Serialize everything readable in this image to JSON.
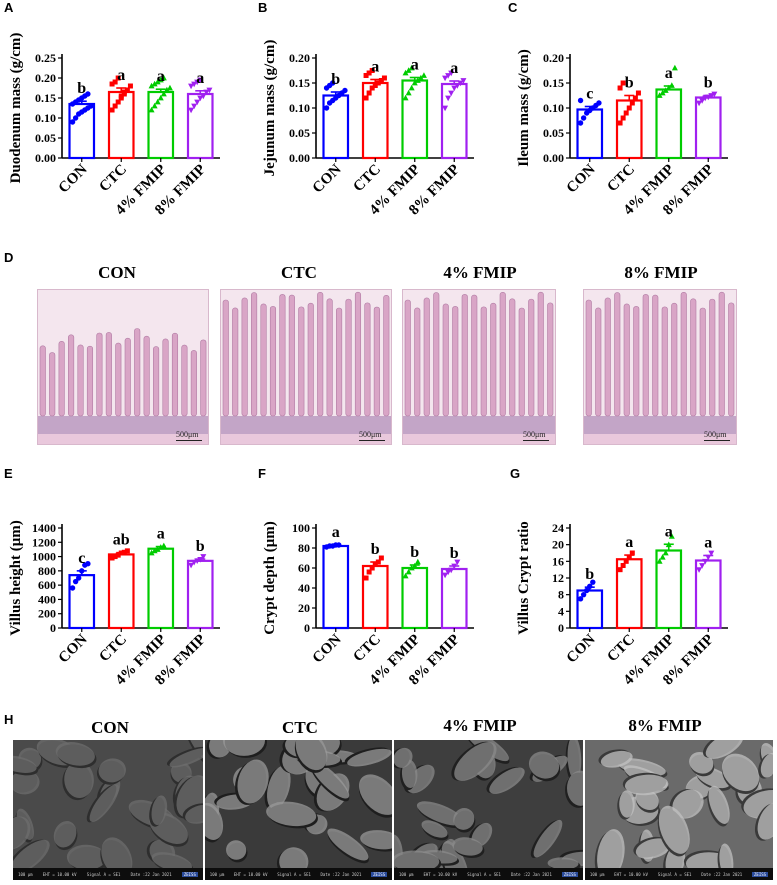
{
  "panel_letters": [
    "A",
    "B",
    "C",
    "D",
    "E",
    "F",
    "G",
    "H"
  ],
  "colors": {
    "CON": "#0000ff",
    "CTC": "#ff0000",
    "4% FMIP": "#00cc00",
    "8% FMIP": "#a020f0"
  },
  "chart_data": [
    {
      "type": "bar",
      "panel": "A",
      "categories": [
        "CON",
        "CTC",
        "4% FMIP",
        "8% FMIP"
      ],
      "values": [
        0.135,
        0.165,
        0.165,
        0.16
      ],
      "errors": [
        0.007,
        0.01,
        0.007,
        0.008
      ],
      "letters": [
        "b",
        "a",
        "a",
        "a"
      ],
      "ylabel": "Duodenum mass (g/cm)",
      "ylim": [
        0,
        0.25
      ],
      "yticks": [
        "0.00",
        "0.05",
        "0.10",
        "0.15",
        "0.20",
        "0.25"
      ],
      "points": [
        [
          0.09,
          0.1,
          0.11,
          0.115,
          0.12,
          0.125,
          0.13,
          0.135,
          0.14,
          0.145,
          0.15,
          0.155,
          0.16
        ],
        [
          0.12,
          0.13,
          0.14,
          0.15,
          0.16,
          0.17,
          0.18,
          0.185,
          0.19,
          0.2,
          0.155,
          0.165
        ],
        [
          0.12,
          0.13,
          0.14,
          0.15,
          0.16,
          0.17,
          0.175,
          0.18,
          0.185,
          0.19,
          0.195,
          0.2
        ],
        [
          0.12,
          0.13,
          0.14,
          0.15,
          0.155,
          0.165,
          0.17,
          0.18,
          0.185,
          0.19,
          0.195
        ]
      ]
    },
    {
      "type": "bar",
      "panel": "B",
      "categories": [
        "CON",
        "CTC",
        "4% FMIP",
        "8% FMIP"
      ],
      "values": [
        0.125,
        0.15,
        0.155,
        0.148
      ],
      "errors": [
        0.007,
        0.007,
        0.006,
        0.006
      ],
      "letters": [
        "b",
        "a",
        "a",
        "a"
      ],
      "ylabel": "Jejunum mass (g/cm)",
      "ylim": [
        0,
        0.2
      ],
      "yticks": [
        "0.00",
        "0.05",
        "0.10",
        "0.15",
        "0.20"
      ],
      "points": [
        [
          0.1,
          0.11,
          0.115,
          0.12,
          0.125,
          0.13,
          0.135,
          0.14,
          0.145,
          0.15
        ],
        [
          0.12,
          0.13,
          0.14,
          0.145,
          0.15,
          0.155,
          0.16,
          0.165,
          0.17,
          0.175
        ],
        [
          0.12,
          0.13,
          0.14,
          0.15,
          0.155,
          0.16,
          0.165,
          0.17,
          0.175,
          0.18
        ],
        [
          0.1,
          0.12,
          0.13,
          0.14,
          0.145,
          0.15,
          0.155,
          0.16,
          0.165,
          0.17
        ]
      ]
    },
    {
      "type": "bar",
      "panel": "C",
      "categories": [
        "CON",
        "CTC",
        "4% FMIP",
        "8% FMIP"
      ],
      "values": [
        0.097,
        0.115,
        0.137,
        0.121
      ],
      "errors": [
        0.006,
        0.01,
        0.007,
        0.004
      ],
      "letters": [
        "c",
        "b",
        "a",
        "b"
      ],
      "ylabel": "Ileum mass (g/cm)",
      "ylim": [
        0,
        0.2
      ],
      "yticks": [
        "0.00",
        "0.05",
        "0.10",
        "0.15",
        "0.20"
      ],
      "points": [
        [
          0.07,
          0.08,
          0.09,
          0.095,
          0.1,
          0.105,
          0.11,
          0.115
        ],
        [
          0.07,
          0.08,
          0.09,
          0.1,
          0.11,
          0.12,
          0.13,
          0.14,
          0.15
        ],
        [
          0.125,
          0.13,
          0.135,
          0.14,
          0.145,
          0.18
        ],
        [
          0.11,
          0.115,
          0.12,
          0.122,
          0.125,
          0.128
        ]
      ]
    },
    {
      "type": "bar",
      "panel": "E",
      "categories": [
        "CON",
        "CTC",
        "4% FMIP",
        "8% FMIP"
      ],
      "values": [
        740,
        1030,
        1110,
        940
      ],
      "errors": [
        60,
        25,
        30,
        25
      ],
      "letters": [
        "c",
        "ab",
        "a",
        "b"
      ],
      "ylabel": "Villus height (μm)",
      "ylim": [
        0,
        1400
      ],
      "yticks": [
        "0",
        "200",
        "400",
        "600",
        "800",
        "1000",
        "1200",
        "1400"
      ],
      "points": [
        [
          560,
          650,
          700,
          800,
          880,
          900
        ],
        [
          980,
          1000,
          1020,
          1050,
          1060,
          1080
        ],
        [
          1050,
          1080,
          1100,
          1130,
          1150
        ],
        [
          880,
          920,
          940,
          960,
          1000
        ]
      ]
    },
    {
      "type": "bar",
      "panel": "F",
      "categories": [
        "CON",
        "CTC",
        "4% FMIP",
        "8% FMIP"
      ],
      "values": [
        82,
        62,
        60,
        59
      ],
      "errors": [
        1,
        4,
        3,
        3
      ],
      "letters": [
        "a",
        "b",
        "b",
        "b"
      ],
      "ylabel": "Crypt depth (μm)",
      "ylim": [
        0,
        100
      ],
      "yticks": [
        "0",
        "20",
        "40",
        "60",
        "80",
        "100"
      ],
      "points": [
        [
          81,
          82,
          82,
          83,
          83
        ],
        [
          50,
          56,
          60,
          64,
          66,
          70
        ],
        [
          52,
          56,
          60,
          62,
          66
        ],
        [
          53,
          56,
          58,
          62,
          66
        ]
      ]
    },
    {
      "type": "bar",
      "panel": "G",
      "categories": [
        "CON",
        "CTC",
        "4% FMIP",
        "8% FMIP"
      ],
      "values": [
        9,
        16.5,
        18.6,
        16.2
      ],
      "errors": [
        0.8,
        1,
        1.5,
        1.2
      ],
      "letters": [
        "b",
        "a",
        "a",
        "a"
      ],
      "ylabel": "Villus Crypt ratio",
      "ylim": [
        0,
        24
      ],
      "yticks": [
        "0",
        "4",
        "8",
        "12",
        "16",
        "20",
        "24"
      ],
      "points": [
        [
          7,
          8,
          9,
          10,
          11
        ],
        [
          14,
          15,
          16,
          17,
          18
        ],
        [
          16,
          17,
          18,
          20,
          22
        ],
        [
          14,
          15,
          16,
          17,
          18
        ]
      ]
    }
  ],
  "histology": {
    "titles": [
      "CON",
      "CTC",
      "4% FMIP",
      "8% FMIP"
    ],
    "scalebar": "500μm",
    "colors": {
      "background": "#f4e6ee",
      "tissue": "#d9a5c6",
      "base": "#9b6fa8"
    }
  },
  "sem": {
    "titles": [
      "CON",
      "CTC",
      "4% FMIP",
      "8% FMIP"
    ],
    "footer_fields": [
      "100 μm",
      "EHT = 10.00 kV",
      "Signal A = SE1",
      "Date :22 Jan 2021"
    ],
    "logo": "ZEISS"
  }
}
